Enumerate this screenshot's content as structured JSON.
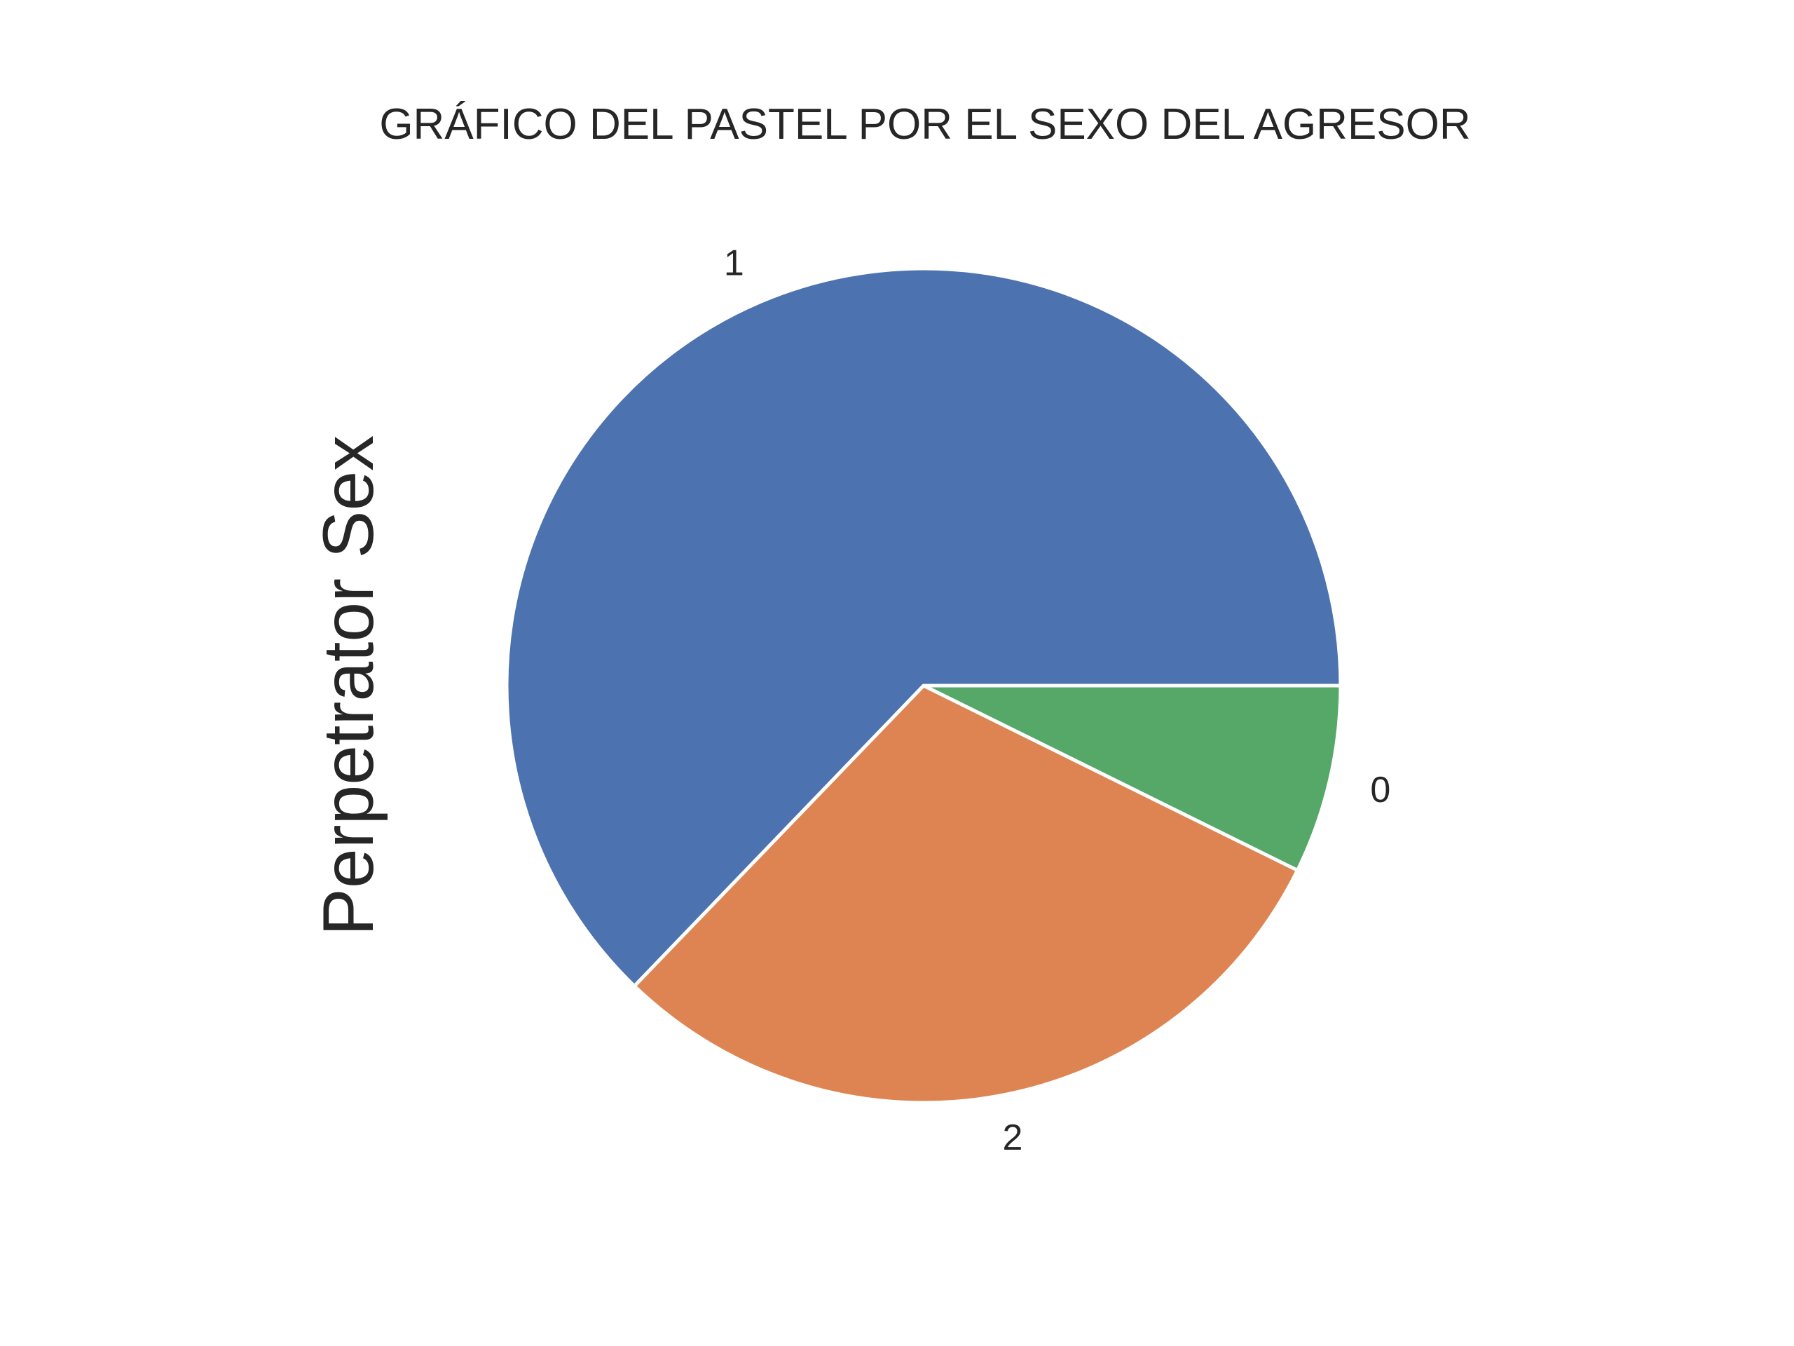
{
  "chart_data": {
    "type": "pie",
    "title": "GRÁFICO DEL PASTEL POR EL SEXO DEL AGRESOR",
    "ylabel": "Perpetrator Sex",
    "categories": [
      "1",
      "2",
      "0"
    ],
    "values": [
      62.8,
      29.9,
      7.3
    ],
    "colors": [
      "#4c72b0",
      "#dd8452",
      "#55a868"
    ],
    "start_angle_deg": 0,
    "direction": "counterclockwise"
  }
}
